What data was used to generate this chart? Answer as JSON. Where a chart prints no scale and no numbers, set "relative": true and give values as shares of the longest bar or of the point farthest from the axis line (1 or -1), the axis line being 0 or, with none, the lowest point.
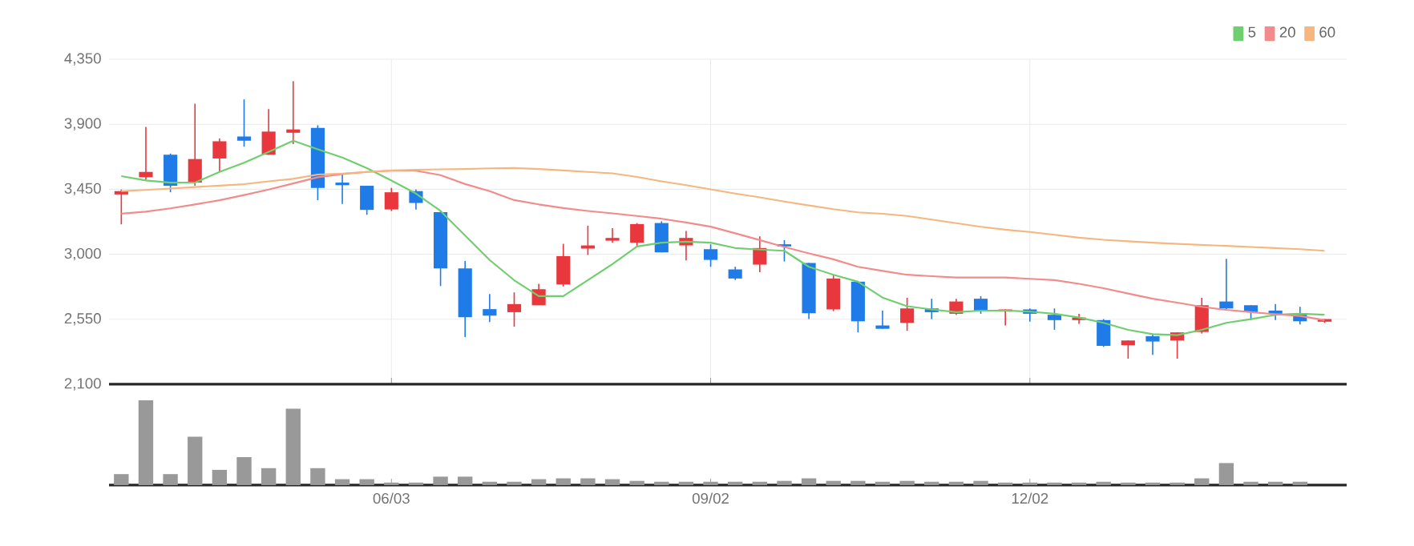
{
  "chart_data": [
    {
      "type": "candlestick",
      "categories": [
        null,
        null,
        null,
        null,
        null,
        null,
        null,
        null,
        null,
        null,
        null,
        null,
        null,
        null,
        null,
        null,
        null,
        null,
        null,
        null,
        null,
        null,
        null,
        null,
        null,
        null,
        null,
        null,
        null,
        null,
        null,
        null,
        null,
        null,
        null,
        null,
        null,
        null,
        null,
        null,
        null,
        null,
        null,
        null,
        null,
        null,
        null,
        null,
        null,
        null
      ],
      "ylim": [
        2100,
        4350
      ],
      "yticks": [
        {
          "value": 2100,
          "label": "2,100"
        },
        {
          "value": 2550,
          "label": "2,550"
        },
        {
          "value": 3000,
          "label": "3,000"
        },
        {
          "value": 3450,
          "label": "3,450"
        },
        {
          "value": 3900,
          "label": "3,900"
        },
        {
          "value": 4350,
          "label": "4,350"
        }
      ],
      "grid": true,
      "legend": "top right",
      "tick_labels": "y",
      "series": [
        {
          "type": "line",
          "name": "5",
          "color": "#6fcf6f",
          "values": [
            3541,
            3511,
            3496,
            3496,
            3570,
            3633,
            3708,
            3786,
            3726,
            3670,
            3596,
            3510,
            3420,
            3300,
            3130,
            2960,
            2820,
            2710,
            2710,
            2821,
            2932,
            3054,
            3080,
            3087,
            3080,
            3043,
            3032,
            3024,
            2913,
            2858,
            2810,
            2700,
            2640,
            2618,
            2599,
            2610,
            2610,
            2603,
            2588,
            2562,
            2525,
            2477,
            2447,
            2440,
            2477,
            2525,
            2551,
            2581,
            2588,
            2581
          ]
        },
        {
          "type": "line",
          "name": "20",
          "color": "#f28b8b",
          "values": [
            3281,
            3295,
            3318,
            3345,
            3374,
            3410,
            3448,
            3490,
            3533,
            3555,
            3570,
            3578,
            3578,
            3548,
            3486,
            3437,
            3375,
            3345,
            3320,
            3300,
            3283,
            3265,
            3246,
            3220,
            3191,
            3145,
            3098,
            3050,
            3006,
            2965,
            2913,
            2885,
            2858,
            2848,
            2839,
            2839,
            2839,
            2830,
            2821,
            2795,
            2765,
            2728,
            2692,
            2665,
            2636,
            2615,
            2599,
            2585,
            2573,
            2544
          ]
        },
        {
          "type": "line",
          "name": "60",
          "color": "#f5b77f",
          "values": [
            3437,
            3445,
            3455,
            3465,
            3475,
            3485,
            3505,
            3522,
            3552,
            3559,
            3570,
            3580,
            3585,
            3588,
            3590,
            3595,
            3597,
            3590,
            3580,
            3570,
            3560,
            3535,
            3505,
            3478,
            3449,
            3420,
            3394,
            3365,
            3338,
            3312,
            3290,
            3280,
            3265,
            3240,
            3215,
            3190,
            3170,
            3154,
            3135,
            3115,
            3100,
            3090,
            3080,
            3072,
            3065,
            3058,
            3050,
            3043,
            3035,
            3024
          ]
        },
        {
          "type": "candlestick",
          "ohlc": [
            [
              3414,
              3448,
              3207,
              3437
            ],
            [
              3533,
              3882,
              3515,
              3570
            ],
            [
              3689,
              3697,
              3429,
              3474
            ],
            [
              3496,
              4042,
              3474,
              3659
            ],
            [
              3663,
              3801,
              3570,
              3782
            ],
            [
              3815,
              4072,
              3745,
              3786
            ],
            [
              3689,
              4005,
              3689,
              3849
            ],
            [
              3841,
              4198,
              3763,
              3864
            ],
            [
              3875,
              3893,
              3374,
              3459
            ],
            [
              3496,
              3559,
              3348,
              3478
            ],
            [
              3474,
              3474,
              3273,
              3307
            ],
            [
              3310,
              3459,
              3299,
              3429
            ],
            [
              3437,
              3448,
              3310,
              3355
            ],
            [
              3292,
              3299,
              2780,
              2902
            ],
            [
              2902,
              2954,
              2427,
              2564
            ],
            [
              2620,
              2724,
              2531,
              2575
            ],
            [
              2599,
              2736,
              2499,
              2655
            ],
            [
              2647,
              2795,
              2647,
              2758
            ],
            [
              2791,
              3072,
              2777,
              2987
            ],
            [
              3039,
              3198,
              2995,
              3061
            ],
            [
              3094,
              3180,
              3080,
              3113
            ],
            [
              3080,
              3216,
              3050,
              3209
            ],
            [
              3216,
              3228,
              3013,
              3013
            ],
            [
              3061,
              3161,
              2958,
              3113
            ],
            [
              3035,
              3069,
              2913,
              2961
            ],
            [
              2895,
              2913,
              2821,
              2832
            ],
            [
              2928,
              3124,
              2876,
              3043
            ],
            [
              3069,
              3098,
              2950,
              3054
            ],
            [
              2939,
              2939,
              2551,
              2592
            ],
            [
              2618,
              2858,
              2606,
              2832
            ],
            [
              2810,
              2810,
              2459,
              2536
            ],
            [
              2507,
              2610,
              2484,
              2484
            ],
            [
              2525,
              2699,
              2470,
              2625
            ],
            [
              2625,
              2692,
              2551,
              2599
            ],
            [
              2588,
              2692,
              2581,
              2673
            ],
            [
              2692,
              2710,
              2588,
              2610
            ],
            [
              2603,
              2618,
              2507,
              2618
            ],
            [
              2618,
              2625,
              2533,
              2588
            ],
            [
              2581,
              2625,
              2477,
              2544
            ],
            [
              2544,
              2588,
              2518,
              2562
            ],
            [
              2544,
              2551,
              2359,
              2366
            ],
            [
              2370,
              2403,
              2277,
              2403
            ],
            [
              2433,
              2451,
              2303,
              2396
            ],
            [
              2403,
              2459,
              2277,
              2459
            ],
            [
              2462,
              2699,
              2451,
              2647
            ],
            [
              2673,
              2969,
              2618,
              2625
            ],
            [
              2647,
              2647,
              2544,
              2599
            ],
            [
              2610,
              2655,
              2544,
              2588
            ],
            [
              2592,
              2636,
              2514,
              2536
            ],
            [
              2533,
              2551,
              2525,
              2551
            ]
          ],
          "colors": [
            "#e8383d",
            "#e8383d",
            "#1f7be8",
            "#e8383d",
            "#e8383d",
            "#1f7be8",
            "#e8383d",
            "#e8383d",
            "#1f7be8",
            "#1f7be8",
            "#1f7be8",
            "#e8383d",
            "#1f7be8",
            "#1f7be8",
            "#1f7be8",
            "#1f7be8",
            "#e8383d",
            "#e8383d",
            "#e8383d",
            "#e8383d",
            "#e8383d",
            "#e8383d",
            "#1f7be8",
            "#e8383d",
            "#1f7be8",
            "#1f7be8",
            "#e8383d",
            "#1f7be8",
            "#1f7be8",
            "#e8383d",
            "#1f7be8",
            "#1f7be8",
            "#e8383d",
            "#1f7be8",
            "#e8383d",
            "#1f7be8",
            "#e8383d",
            "#1f7be8",
            "#1f7be8",
            "#e8383d",
            "#1f7be8",
            "#e8383d",
            "#1f7be8",
            "#e8383d",
            "#e8383d",
            "#1f7be8",
            "#1f7be8",
            "#1f7be8",
            "#1f7be8",
            "#e8383d"
          ]
        }
      ]
    },
    {
      "type": "bar",
      "relative": true,
      "tick_labels": "x",
      "color": "#999999",
      "categories": [
        null,
        null,
        null,
        null,
        null,
        null,
        null,
        null,
        null,
        null,
        null,
        "06/03",
        null,
        null,
        null,
        null,
        null,
        null,
        null,
        null,
        null,
        null,
        null,
        null,
        "09/02",
        null,
        null,
        null,
        null,
        null,
        null,
        null,
        null,
        null,
        null,
        null,
        null,
        "12/02",
        null,
        null,
        null,
        null,
        null,
        null,
        null,
        null,
        null,
        null,
        null,
        null
      ],
      "values": [
        0.13,
        1,
        0.13,
        0.57,
        0.18,
        0.33,
        0.2,
        0.9,
        0.2,
        0.07,
        0.07,
        0.03,
        0.03,
        0.1,
        0.1,
        0.04,
        0.04,
        0.07,
        0.08,
        0.08,
        0.07,
        0.05,
        0.04,
        0.04,
        0.04,
        0.04,
        0.04,
        0.05,
        0.08,
        0.05,
        0.05,
        0.04,
        0.05,
        0.04,
        0.04,
        0.05,
        0.03,
        0.03,
        0.03,
        0.03,
        0.04,
        0.03,
        0.03,
        0.03,
        0.08,
        0.26,
        0.04,
        0.04,
        0.04,
        null
      ]
    }
  ]
}
